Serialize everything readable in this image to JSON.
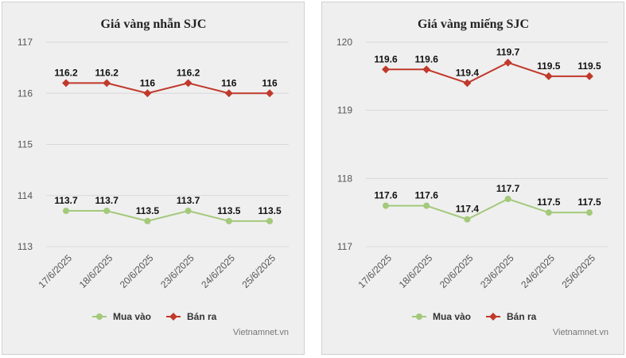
{
  "chart_data": [
    {
      "type": "line",
      "title": "Giá vàng nhẫn SJC",
      "categories": [
        "17/6/2025",
        "18/6/2025",
        "20/6/2025",
        "23/6/2025",
        "24/6/2025",
        "25/6/2025"
      ],
      "ylim": [
        113,
        117
      ],
      "yticks": [
        "113",
        "114",
        "115",
        "116",
        "117"
      ],
      "grid": true,
      "legend": "bottom",
      "series": [
        {
          "name": "Mua vào",
          "color": "#a3c97a",
          "values": [
            113.7,
            113.7,
            113.5,
            113.7,
            113.5,
            113.5
          ],
          "labels": [
            "113.7",
            "113.7",
            "113.5",
            "113.7",
            "113.5",
            "113.5"
          ]
        },
        {
          "name": "Bán ra",
          "color": "#c0392b",
          "values": [
            116.2,
            116.2,
            116,
            116.2,
            116,
            116
          ],
          "labels": [
            "116.2",
            "116.2",
            "116",
            "116.2",
            "116",
            "116"
          ]
        }
      ],
      "source": "Vietnamnet.vn"
    },
    {
      "type": "line",
      "title": "Giá vàng miếng SJC",
      "categories": [
        "17/6/2025",
        "18/6/2025",
        "20/6/2025",
        "23/6/2025",
        "24/6/2025",
        "25/6/2025"
      ],
      "ylim": [
        117,
        120
      ],
      "yticks": [
        "117",
        "118",
        "119",
        "120"
      ],
      "grid": true,
      "legend": "bottom",
      "series": [
        {
          "name": "Mua vào",
          "color": "#a3c97a",
          "values": [
            117.6,
            117.6,
            117.4,
            117.7,
            117.5,
            117.5
          ],
          "labels": [
            "117.6",
            "117.6",
            "117.4",
            "117.7",
            "117.5",
            "117.5"
          ]
        },
        {
          "name": "Bán ra",
          "color": "#c0392b",
          "values": [
            119.6,
            119.6,
            119.4,
            119.7,
            119.5,
            119.5
          ],
          "labels": [
            "119.6",
            "119.6",
            "119.4",
            "119.7",
            "119.5",
            "119.5"
          ]
        }
      ],
      "source": "Vietnamnet.vn"
    }
  ]
}
